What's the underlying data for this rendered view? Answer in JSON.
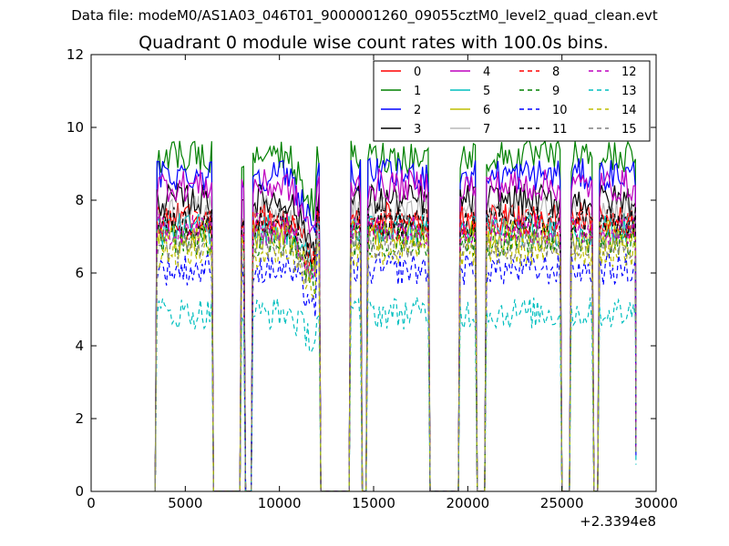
{
  "suptitle": "Data file: modeM0/AS1A03_046T01_9000001260_09055cztM0_level2_quad_clean.evt",
  "chart_data": {
    "type": "line",
    "title": "Quadrant 0 module wise count rates with 100.0s bins.",
    "xlabel": "",
    "ylabel": "",
    "xlim": [
      0,
      30000
    ],
    "ylim": [
      0,
      12
    ],
    "x_offset_label": "+2.3394e8",
    "x_ticks": [
      0,
      5000,
      10000,
      15000,
      20000,
      25000,
      30000
    ],
    "x_tick_labels": [
      "0",
      "5000",
      "10000",
      "15000",
      "20000",
      "25000",
      "30000"
    ],
    "y_ticks": [
      0,
      2,
      4,
      6,
      8,
      10,
      12
    ],
    "y_tick_labels": [
      "0",
      "2",
      "4",
      "6",
      "8",
      "10",
      "12"
    ],
    "bin_width": 100,
    "legend_position": "top-right",
    "on_intervals": [
      [
        3500,
        6400
      ],
      [
        8000,
        8100
      ],
      [
        8600,
        12100
      ],
      [
        13800,
        14300
      ],
      [
        14700,
        17900
      ],
      [
        19600,
        20400
      ],
      [
        21000,
        24900
      ],
      [
        25500,
        26600
      ],
      [
        27000,
        28900
      ]
    ],
    "series": [
      {
        "name": "0",
        "color": "#ff0000",
        "dash": "solid",
        "level": 7.5
      },
      {
        "name": "1",
        "color": "#008000",
        "dash": "solid",
        "level": 9.2
      },
      {
        "name": "2",
        "color": "#0000ff",
        "dash": "solid",
        "level": 8.7
      },
      {
        "name": "3",
        "color": "#000000",
        "dash": "solid",
        "level": 8.0
      },
      {
        "name": "4",
        "color": "#bf00bf",
        "dash": "solid",
        "level": 8.4
      },
      {
        "name": "5",
        "color": "#00bfbf",
        "dash": "solid",
        "level": 7.2
      },
      {
        "name": "6",
        "color": "#bfbf00",
        "dash": "solid",
        "level": 7.0
      },
      {
        "name": "7",
        "color": "#808080",
        "dash": "solid",
        "level": 7.7,
        "alpha": 0.55
      },
      {
        "name": "8",
        "color": "#ff0000",
        "dash": "dashed",
        "level": 7.3
      },
      {
        "name": "9",
        "color": "#008000",
        "dash": "dashed",
        "level": 6.9
      },
      {
        "name": "10",
        "color": "#0000ff",
        "dash": "dashed",
        "level": 6.1
      },
      {
        "name": "11",
        "color": "#000000",
        "dash": "dashed",
        "level": 7.4
      },
      {
        "name": "12",
        "color": "#bf00bf",
        "dash": "dashed",
        "level": 7.2
      },
      {
        "name": "13",
        "color": "#00bfbf",
        "dash": "dashed",
        "level": 4.9
      },
      {
        "name": "14",
        "color": "#bfbf00",
        "dash": "dashed",
        "level": 6.6
      },
      {
        "name": "15",
        "color": "#808080",
        "dash": "dashed",
        "level": 6.8
      }
    ]
  }
}
